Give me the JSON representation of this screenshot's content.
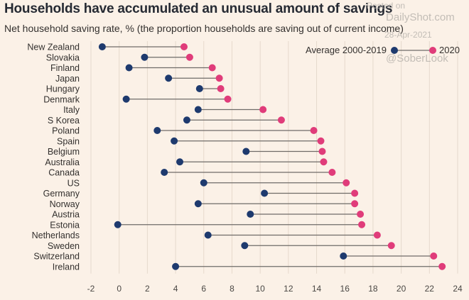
{
  "chart_data": {
    "type": "dumbbell",
    "title": "Households have accumulated an unusual amount of savings",
    "subtitle": "Net household saving rate, % (the proportion households are saving out of current income)",
    "xlim": [
      -2,
      24
    ],
    "xticks": [
      -2,
      0,
      2,
      4,
      6,
      8,
      10,
      12,
      14,
      16,
      18,
      20,
      22,
      24
    ],
    "legend_position": "top-right",
    "categories": [
      "New Zealand",
      "Slovakia",
      "Finland",
      "Japan",
      "Hungary",
      "Denmark",
      "Italy",
      "S Korea",
      "Poland",
      "Spain",
      "Belgium",
      "Australia",
      "Canada",
      "US",
      "Germany",
      "Norway",
      "Austria",
      "Estonia",
      "Netherlands",
      "Sweden",
      "Switzerland",
      "Ireland"
    ],
    "series": [
      {
        "name": "Average 2000-2019",
        "color": "#1e3a6e",
        "values": [
          -1.2,
          1.8,
          0.7,
          3.5,
          5.7,
          0.5,
          5.6,
          4.8,
          2.7,
          3.9,
          9.0,
          4.3,
          3.2,
          6.0,
          10.3,
          5.6,
          9.3,
          -0.1,
          6.3,
          8.9,
          15.9,
          4.0
        ]
      },
      {
        "name": "2020",
        "color": "#e03c7a",
        "values": [
          4.6,
          5.0,
          6.6,
          7.1,
          7.2,
          7.7,
          10.2,
          11.5,
          13.8,
          14.3,
          14.4,
          14.5,
          15.1,
          16.1,
          16.7,
          16.7,
          17.1,
          17.2,
          18.3,
          19.3,
          22.3,
          22.9
        ]
      }
    ]
  },
  "watermark": {
    "posted": "Posted on",
    "site": "DailyShot.com",
    "date": "28-Apr-2021",
    "handle": "@SoberLook"
  }
}
